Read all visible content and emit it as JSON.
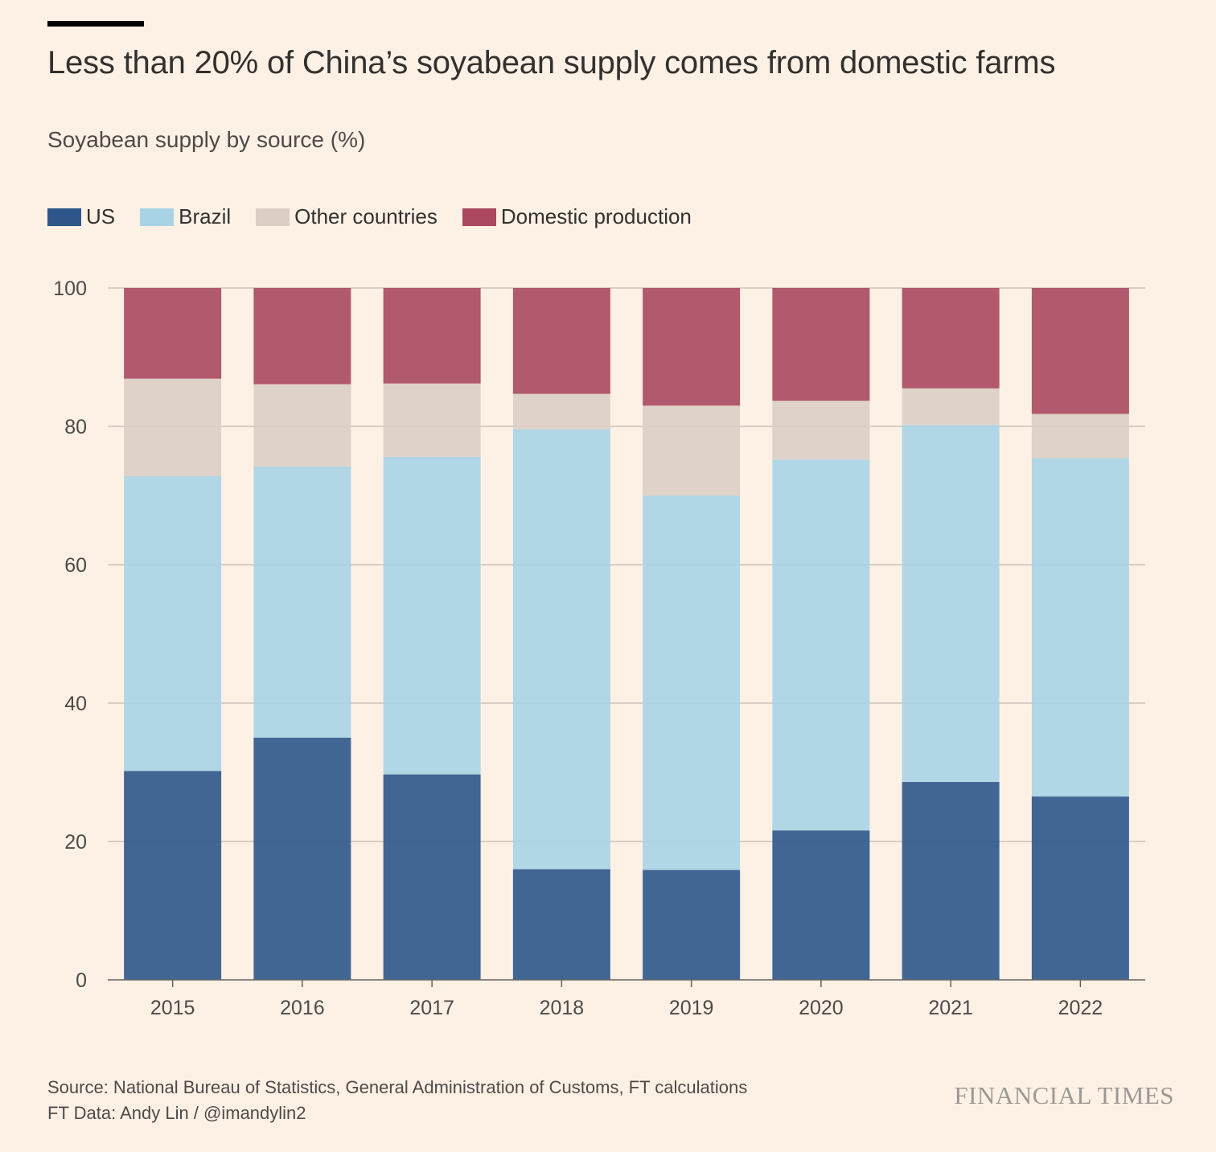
{
  "title": "Less than 20% of China’s soyabean supply comes from domestic farms",
  "subtitle": "Soyabean supply by source (%)",
  "footer": {
    "source": "Source: National Bureau of Statistics, General Administration of Customs, FT calculations",
    "credit": "FT Data: Andy Lin / @imandylin2",
    "logo": "FINANCIAL TIMES"
  },
  "legend": [
    {
      "label": "US",
      "color": "#2e5689"
    },
    {
      "label": "Brazil",
      "color": "#a8d3e5"
    },
    {
      "label": "Other countries",
      "color": "#dccec4"
    },
    {
      "label": "Domestic production",
      "color": "#a9485f"
    }
  ],
  "chart_data": {
    "type": "bar",
    "stacked": true,
    "categories": [
      "2015",
      "2016",
      "2017",
      "2018",
      "2019",
      "2020",
      "2021",
      "2022"
    ],
    "series": [
      {
        "name": "US",
        "color": "#2e5689",
        "values": [
          30.2,
          35.0,
          29.7,
          16.0,
          15.9,
          21.6,
          28.6,
          26.5
        ]
      },
      {
        "name": "Brazil",
        "color": "#a8d3e5",
        "values": [
          42.6,
          39.2,
          45.9,
          63.6,
          54.1,
          53.6,
          51.6,
          48.9
        ]
      },
      {
        "name": "Other countries",
        "color": "#dccec4",
        "values": [
          14.1,
          11.9,
          10.6,
          5.1,
          13.0,
          8.5,
          5.3,
          6.4
        ]
      },
      {
        "name": "Domestic production",
        "color": "#a9485f",
        "values": [
          13.1,
          13.9,
          13.8,
          15.3,
          17.0,
          16.3,
          14.5,
          18.2
        ]
      }
    ],
    "ylim": [
      0,
      100
    ],
    "yticks": [
      "0",
      "20",
      "40",
      "60",
      "80",
      "100"
    ],
    "grid": true,
    "legend_position": "top-left",
    "xlabel": "",
    "ylabel": ""
  }
}
